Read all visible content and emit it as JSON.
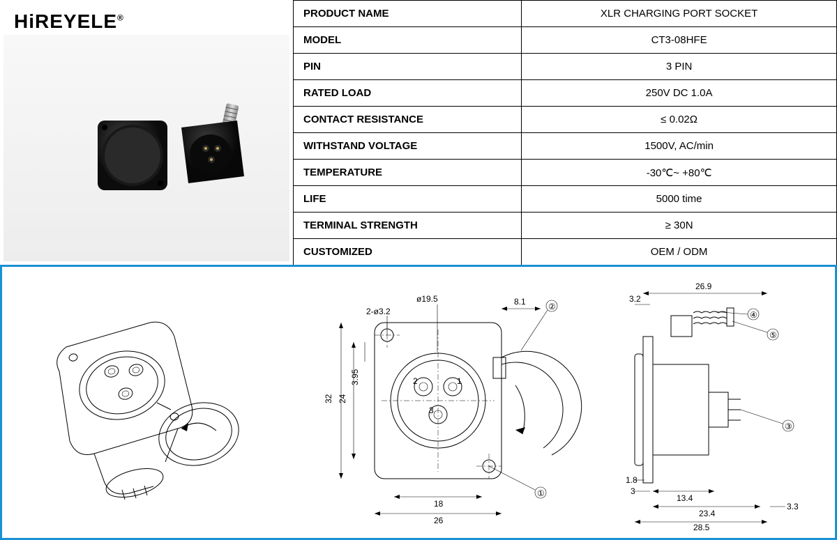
{
  "brand": "HiREYELE",
  "trademark": "®",
  "spec_table": {
    "columns": [
      "label",
      "value"
    ],
    "rows": [
      [
        "PRODUCT NAME",
        "XLR CHARGING PORT SOCKET"
      ],
      [
        "MODEL",
        "CT3-08HFE"
      ],
      [
        "PIN",
        "3 PIN"
      ],
      [
        "RATED LOAD",
        "250V DC 1.0A"
      ],
      [
        "CONTACT RESISTANCE",
        "≤ 0.02Ω"
      ],
      [
        "WITHSTAND VOLTAGE",
        "1500V, AC/min"
      ],
      [
        "TEMPERATURE",
        "-30℃~ +80℃"
      ],
      [
        "LIFE",
        "5000 time"
      ],
      [
        "TERMINAL STRENGTH",
        "≥ 30N"
      ],
      [
        "CUSTOMIZED",
        "OEM / ODM"
      ]
    ]
  },
  "drawings": {
    "front_view": {
      "dims": {
        "outer_w": "26",
        "outer_h": "32",
        "inner_w": "18",
        "inner_h": "24",
        "inner_offset": "3.95",
        "hole": "2-ø3.2",
        "circle": "ø19.5",
        "lid_offset": "8.1"
      },
      "pins": [
        "1",
        "2",
        "3"
      ],
      "callouts": [
        "①",
        "②"
      ]
    },
    "side_view": {
      "dims": {
        "top_w": "26.9",
        "top_offset": "3.2",
        "bottom_a": "1.8",
        "bottom_b": "3",
        "bottom_c": "13.4",
        "bottom_d": "23.4",
        "bottom_e": "28.5",
        "right_h": "3.3"
      },
      "callouts": [
        "③",
        "④",
        "⑤"
      ]
    }
  },
  "colors": {
    "frame": "#1a8fd4",
    "bg": "#ffffff",
    "product_bg_top": "#f8f8f8",
    "product_bg_bottom": "#ededed",
    "socket": "#1c1c1c",
    "spring": "#b8b8b8"
  }
}
